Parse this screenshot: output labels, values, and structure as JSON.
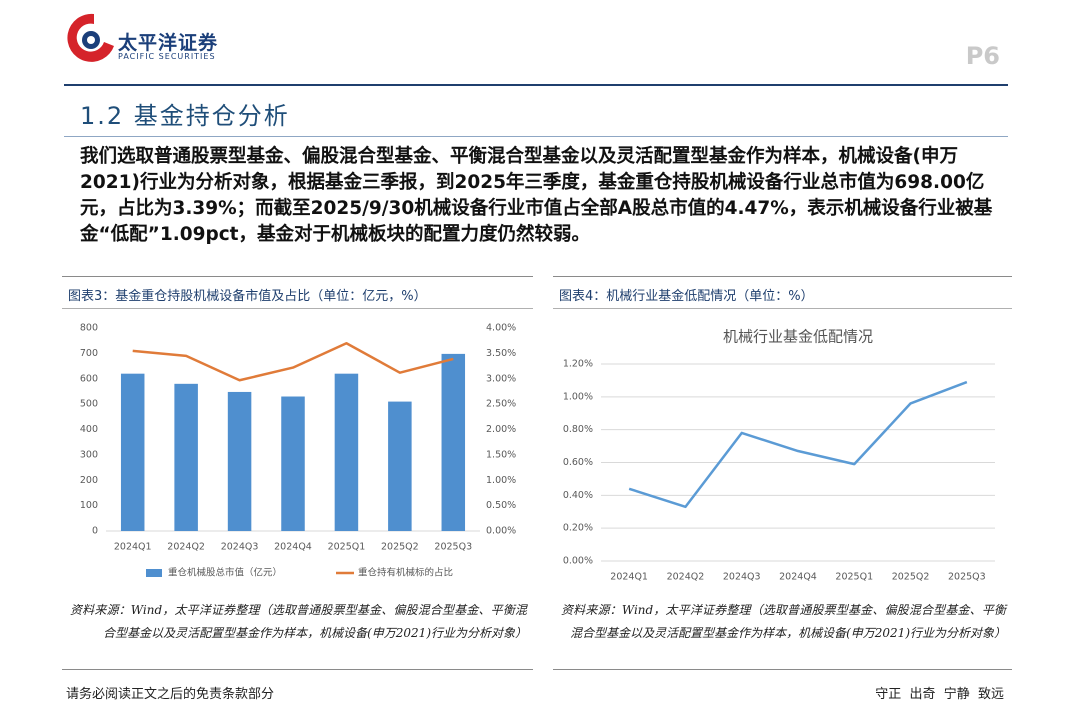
{
  "header": {
    "brand": "太平洋证券",
    "brand_en": "PACIFIC SECURITIES",
    "page": "P6"
  },
  "section_title": "1.2 基金持仓分析",
  "body": "我们选取普通股票型基金、偏股混合型基金、平衡混合型基金以及灵活配置型基金作为样本，机械设备(申万2021)行业为分析对象，根据基金三季报，到2025年三季度，基金重仓持股机械设备行业总市值为698.00亿元，占比为3.39%；而截至2025/9/30机械设备行业市值占全部A股总市值的4.47%，表示机械设备行业被基金“低配”1.09pct，基金对于机械板块的配置力度仍然较弱。",
  "figures": [
    {
      "caption": "图表3：基金重仓持股机械设备市值及占比（单位：亿元，%）",
      "source": "资料来源：Wind，太平洋证券整理（选取普通股票型基金、偏股混合型基金、平衡混合型基金以及灵活配置型基金作为样本，机械设备(申万2021)行业为分析对象）"
    },
    {
      "caption": "图表4：机械行业基金低配情况（单位：%）",
      "source": "资料来源：Wind，太平洋证券整理（选取普通股票型基金、偏股混合型基金、平衡混合型基金以及灵活配置型基金作为样本，机械设备(申万2021)行业为分析对象）"
    }
  ],
  "chart_data": [
    {
      "type": "combo",
      "categories": [
        "2024Q1",
        "2024Q2",
        "2024Q3",
        "2024Q4",
        "2025Q1",
        "2025Q2",
        "2025Q3"
      ],
      "series": [
        {
          "name": "重仓机械股总市值（亿元）",
          "type": "bar",
          "color": "#4f8fcf",
          "values": [
            620,
            580,
            548,
            530,
            620,
            510,
            698
          ]
        },
        {
          "name": "重仓持有机械标的占比",
          "type": "line",
          "axis": "y2",
          "color": "#e07b39",
          "values": [
            3.55,
            3.45,
            2.97,
            3.22,
            3.7,
            3.12,
            3.39
          ]
        }
      ],
      "ylim": [
        0,
        800
      ],
      "yticks": [
        0,
        100,
        200,
        300,
        400,
        500,
        600,
        700,
        800
      ],
      "y2lim": [
        0,
        4
      ],
      "y2ticks": [
        {
          "value": 0,
          "label": "0.00%"
        },
        {
          "value": 0.5,
          "label": "0.50%"
        },
        {
          "value": 1,
          "label": "1.00%"
        },
        {
          "value": 1.5,
          "label": "1.50%"
        },
        {
          "value": 2,
          "label": "2.00%"
        },
        {
          "value": 2.5,
          "label": "2.50%"
        },
        {
          "value": 3,
          "label": "3.00%"
        },
        {
          "value": 3.5,
          "label": "3.50%"
        },
        {
          "value": 4,
          "label": "4.00%"
        }
      ],
      "grid": false,
      "legend": "bottom"
    },
    {
      "type": "line",
      "title": "机械行业基金低配情况",
      "categories": [
        "2024Q1",
        "2024Q2",
        "2024Q3",
        "2024Q4",
        "2025Q1",
        "2025Q2",
        "2025Q3"
      ],
      "values": [
        0.44,
        0.33,
        0.78,
        0.67,
        0.59,
        0.96,
        1.09
      ],
      "color": "#5b9bd5",
      "ylim": [
        0,
        1.2
      ],
      "yticks": [
        {
          "value": 0,
          "label": "0.00%"
        },
        {
          "value": 0.2,
          "label": "0.20%"
        },
        {
          "value": 0.4,
          "label": "0.40%"
        },
        {
          "value": 0.6,
          "label": "0.60%"
        },
        {
          "value": 0.8,
          "label": "0.80%"
        },
        {
          "value": 1,
          "label": "1.00%"
        },
        {
          "value": 1.2,
          "label": "1.20%"
        }
      ],
      "grid": true
    }
  ],
  "footer": {
    "disclaimer": "请务必阅读正文之后的免责条款部分",
    "motto": "守正  出奇  宁静  致远"
  }
}
